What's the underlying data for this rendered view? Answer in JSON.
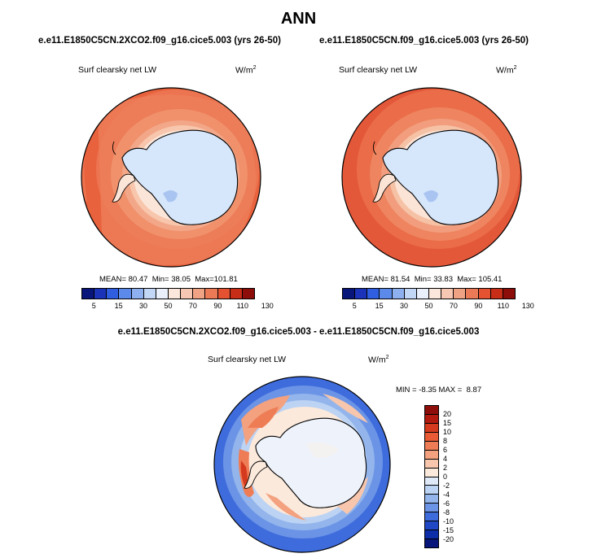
{
  "title": "ANN",
  "panels": [
    {
      "case": "e.e11.E1850C5CN.2XCO2.f09_g16.cice5.003 (yrs 26-50)",
      "variable": "Surf clearsky net LW",
      "units_base": "W/m",
      "units_exp": "2",
      "mean_label": "MEAN=",
      "mean": "80.47",
      "min_label": "Min=",
      "min": "38.05",
      "max_label": "Max=",
      "max": "101.81"
    },
    {
      "case": "e.e11.E1850C5CN.f09_g16.cice5.003 (yrs 26-50)",
      "variable": "Surf clearsky net LW",
      "units_base": "W/m",
      "units_exp": "2",
      "mean_label": "MEAN=",
      "mean": "81.54",
      "min_label": "Min=",
      "min": "33.83",
      "max_label": "Max=",
      "max": "105.41"
    }
  ],
  "diff": {
    "title": "e.e11.E1850C5CN.2XCO2.f09_g16.cice5.003 - e.e11.E1850C5CN.f09_g16.cice5.003",
    "variable": "Surf clearsky net LW",
    "units_base": "W/m",
    "units_exp": "2",
    "min_label": "MIN =",
    "min": "-8.35",
    "max_label": "MAX =",
    "max": "8.87"
  },
  "colorbar_abs": {
    "ticks": [
      "5",
      "15",
      "30",
      "50",
      "70",
      "90",
      "110",
      "130"
    ],
    "colors": [
      "#08157a",
      "#1a33b8",
      "#2f5fe0",
      "#5b8aea",
      "#8fb0ef",
      "#c2d6f5",
      "#eaf0fb",
      "#fbe7dc",
      "#f6c8b3",
      "#f0a284",
      "#ec7a57",
      "#e45232",
      "#c82d17",
      "#8c0d0a"
    ]
  },
  "colorbar_diff": {
    "labels": [
      "20",
      "15",
      "10",
      "8",
      "6",
      "4",
      "2",
      "0",
      "-2",
      "-4",
      "-6",
      "-8",
      "-10",
      "-15",
      "-20"
    ],
    "colors": [
      "#8c0d0a",
      "#b21a10",
      "#d63a1e",
      "#e85b35",
      "#ee7d56",
      "#f3a17f",
      "#f7c6ac",
      "#fbe9dc",
      "#dfe9f8",
      "#bcd3f3",
      "#93b5ec",
      "#6b94e6",
      "#3f6cdc",
      "#2148c4",
      "#0d2ea8",
      "#08157a"
    ]
  },
  "colors": {
    "land_abs": "#d6e6fb",
    "ocean_outer": "#e8623d",
    "ocean_mid": "#f08a63",
    "ice_edge": "#f6c8b3",
    "diff_outer": "#3f6cdc",
    "diff_mid": "#8fb0ef",
    "diff_inner": "#e8f0fb"
  }
}
